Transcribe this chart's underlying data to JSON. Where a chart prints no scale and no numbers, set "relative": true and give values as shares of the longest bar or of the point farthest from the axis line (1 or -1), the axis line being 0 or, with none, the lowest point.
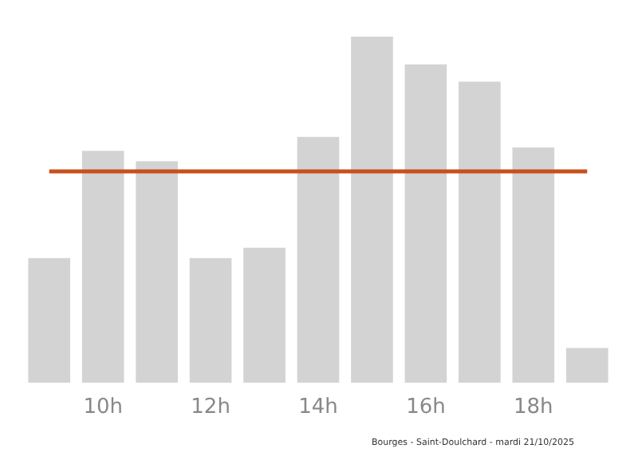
{
  "chart_data": {
    "type": "bar",
    "relative": true,
    "categories": [
      null,
      "10h",
      null,
      "12h",
      null,
      "14h",
      null,
      "16h",
      null,
      "18h",
      null
    ],
    "values": [
      0.36,
      0.67,
      0.64,
      0.36,
      0.39,
      0.71,
      1,
      0.92,
      0.87,
      0.68,
      0.1
    ],
    "color": "#d3d3d3",
    "ref_lines": [
      {
        "axis": "y",
        "value": 0.61,
        "label": null,
        "color": "#c8501a"
      }
    ],
    "annotations": [
      "Bourges - Saint-Doulchard - mardi 21/10/2025"
    ]
  }
}
